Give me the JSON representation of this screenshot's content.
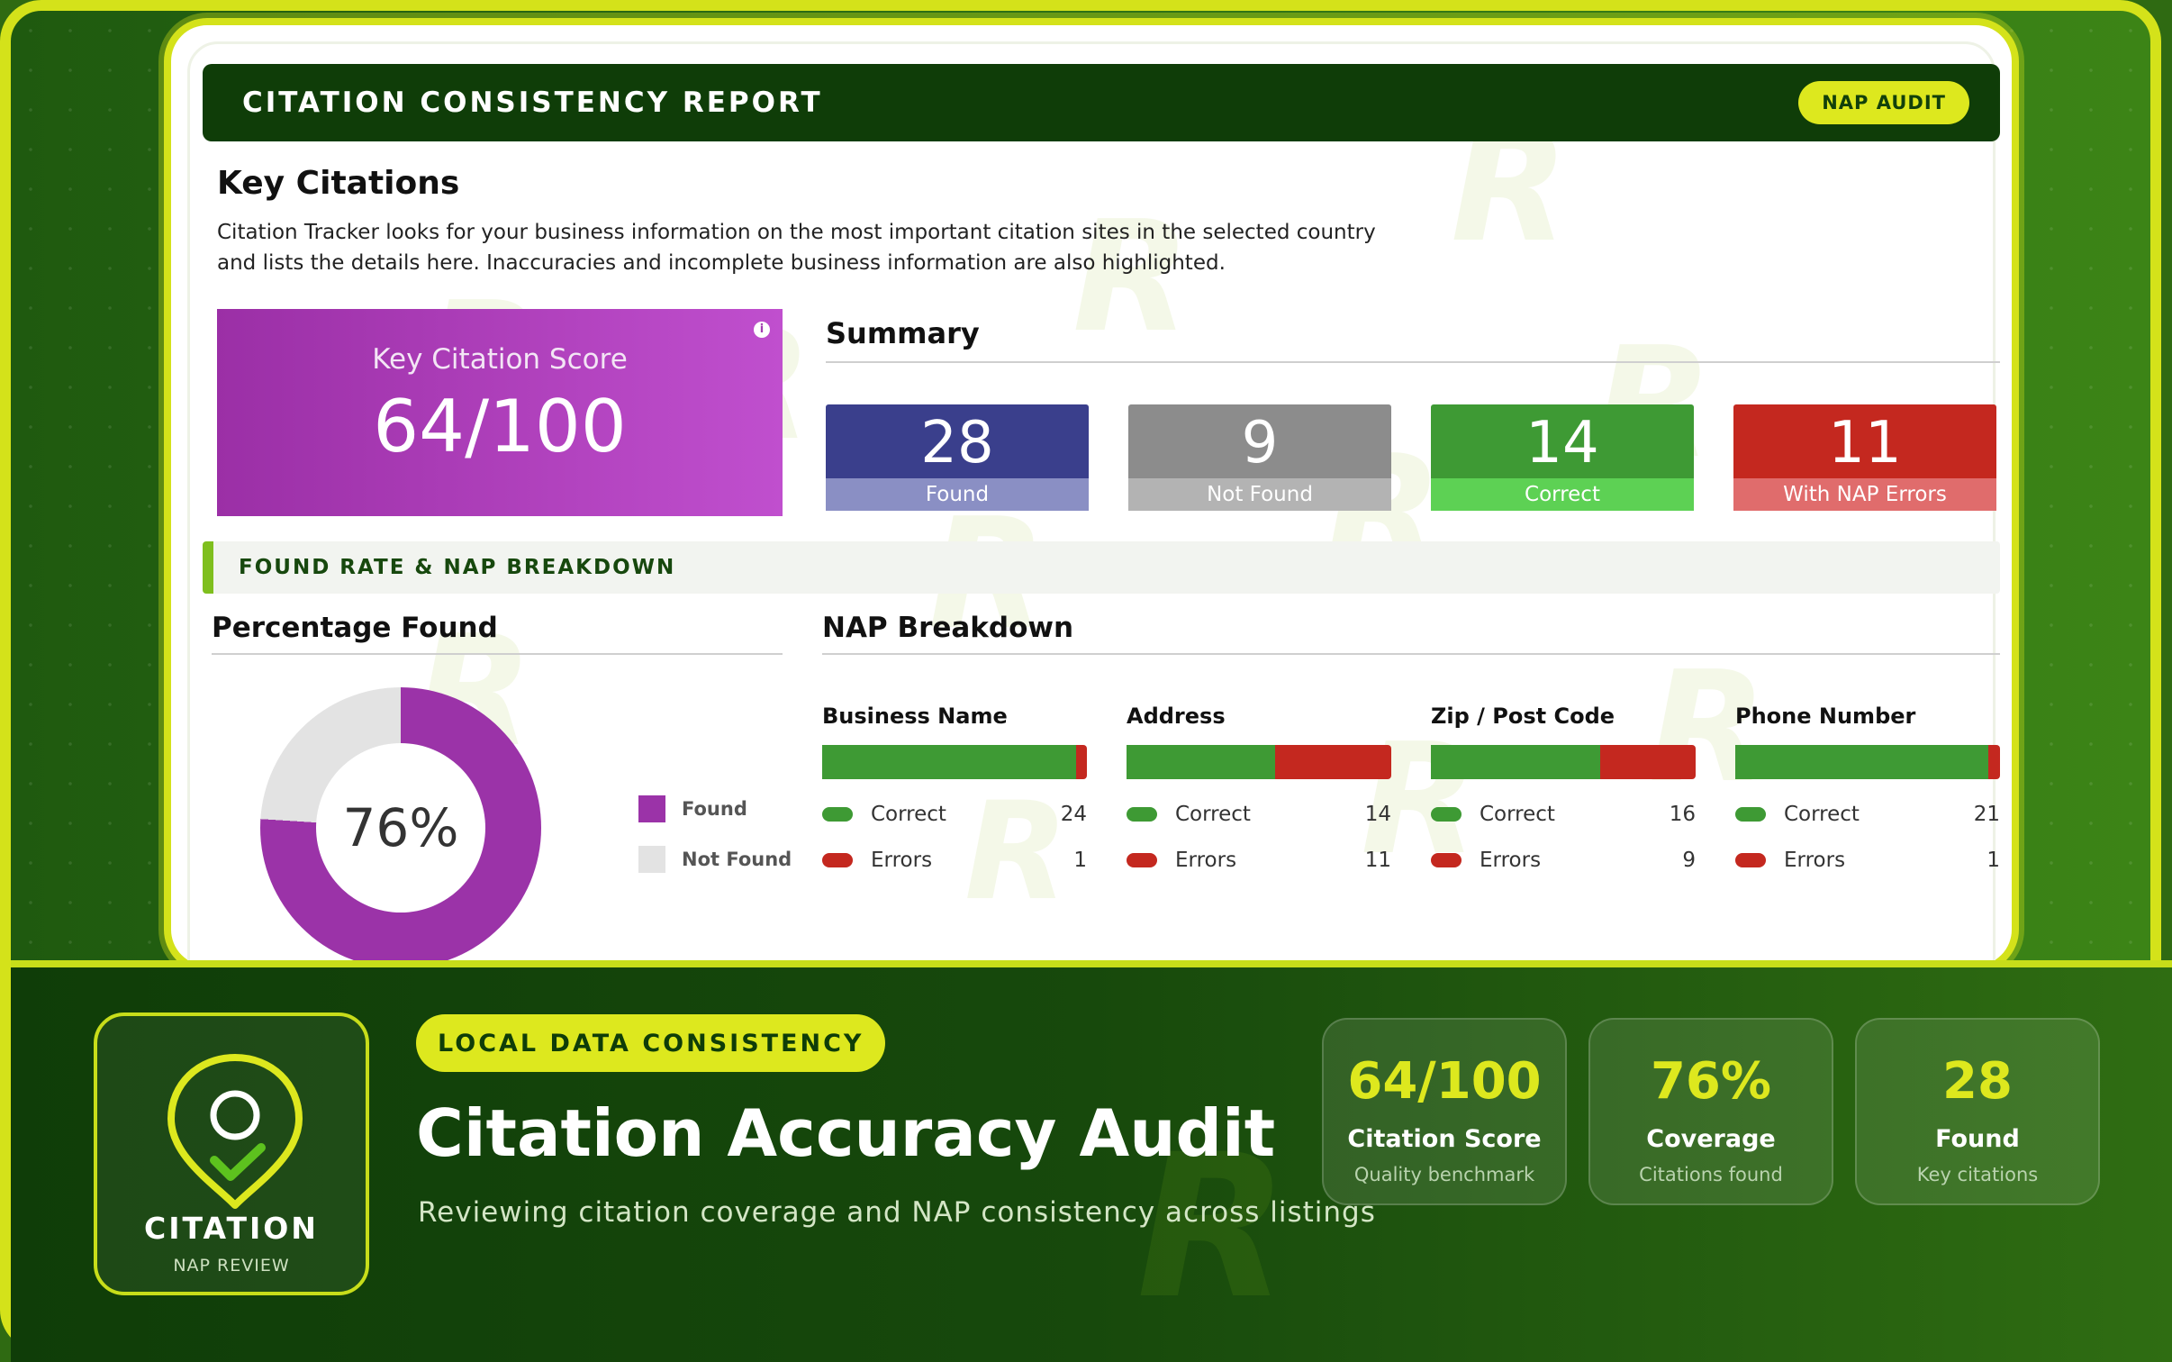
{
  "report": {
    "title": "CITATION CONSISTENCY REPORT",
    "badge": "NAP AUDIT",
    "heading": "Key Citations",
    "description": "Citation Tracker looks for your business information on the most important citation sites in the selected country and lists the details here. Inaccuracies and incomplete business information are also highlighted.",
    "score": {
      "label": "Key Citation Score",
      "value": "64/100",
      "info_icon": "info-icon"
    },
    "summary": {
      "title": "Summary",
      "stats": [
        {
          "value": "28",
          "label": "Found",
          "color": "#3a3f8c"
        },
        {
          "value": "9",
          "label": "Not Found",
          "color": "#8c8c8c"
        },
        {
          "value": "14",
          "label": "Correct",
          "color": "#3e9a34"
        },
        {
          "value": "11",
          "label": "With NAP Errors",
          "color": "#c4281f"
        }
      ]
    },
    "section_label": "FOUND RATE & NAP BREAKDOWN",
    "percentage_found": {
      "title": "Percentage Found",
      "percent": 76,
      "center_label": "76%",
      "legend": [
        {
          "label": "Found",
          "color": "#9b33a8"
        },
        {
          "label": "Not Found",
          "color": "#e3e3e3"
        }
      ]
    },
    "nap": {
      "title": "NAP Breakdown",
      "columns": [
        {
          "name": "Business Name",
          "correct_label": "Correct",
          "correct": "24",
          "errors_label": "Errors",
          "errors": "1"
        },
        {
          "name": "Address",
          "correct_label": "Correct",
          "correct": "14",
          "errors_label": "Errors",
          "errors": "11"
        },
        {
          "name": "Zip / Post Code",
          "correct_label": "Correct",
          "correct": "16",
          "errors_label": "Errors",
          "errors": "9"
        },
        {
          "name": "Phone Number",
          "correct_label": "Correct",
          "correct": "21",
          "errors_label": "Errors",
          "errors": "1"
        }
      ]
    }
  },
  "banner": {
    "badge_title": "CITATION",
    "badge_sub": "NAP REVIEW",
    "badge_icon": "location-pin-check-icon",
    "tag": "LOCAL DATA CONSISTENCY",
    "title": "Citation Accuracy Audit",
    "subtitle": "Reviewing citation coverage and NAP consistency across listings",
    "metrics": [
      {
        "value": "64/100",
        "label": "Citation Score",
        "sub": "Quality benchmark"
      },
      {
        "value": "76%",
        "label": "Coverage",
        "sub": "Citations found"
      },
      {
        "value": "28",
        "label": "Found",
        "sub": "Key citations"
      }
    ]
  },
  "colors": {
    "accent": "#dde81e",
    "dark_green": "#0f3d08",
    "correct": "#3e9a34",
    "error": "#c4281f",
    "purple": "#9b33a8"
  }
}
